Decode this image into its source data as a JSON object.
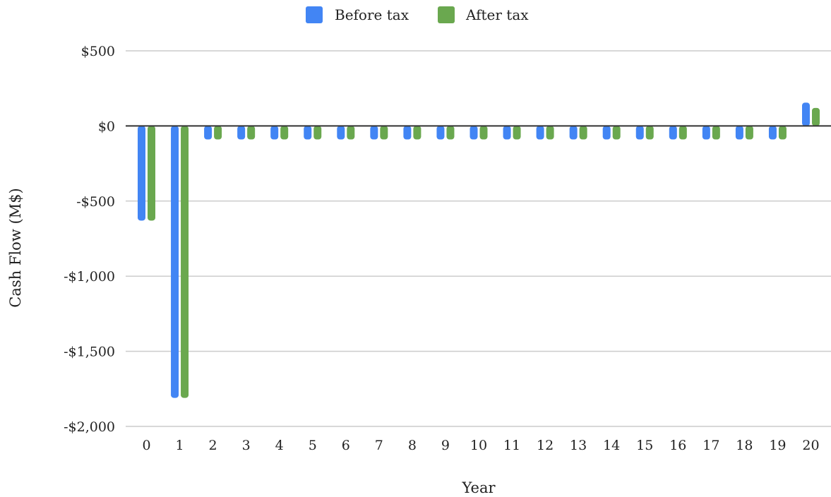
{
  "chart_data": {
    "type": "bar",
    "xlabel": "Year",
    "ylabel": "Cash Flow (M$)",
    "categories": [
      "0",
      "1",
      "2",
      "3",
      "4",
      "5",
      "6",
      "7",
      "8",
      "9",
      "10",
      "11",
      "12",
      "13",
      "14",
      "15",
      "16",
      "17",
      "18",
      "19",
      "20"
    ],
    "series": [
      {
        "name": "Before tax",
        "color": "#4285f4",
        "values": [
          -630,
          -1810,
          -90,
          -90,
          -90,
          -90,
          -90,
          -90,
          -90,
          -90,
          -90,
          -90,
          -90,
          -90,
          -90,
          -90,
          -90,
          -90,
          -90,
          -90,
          155
        ]
      },
      {
        "name": "After tax",
        "color": "#6aa84f",
        "values": [
          -630,
          -1810,
          -90,
          -90,
          -90,
          -90,
          -90,
          -90,
          -90,
          -90,
          -90,
          -90,
          -90,
          -90,
          -90,
          -90,
          -90,
          -90,
          -90,
          -90,
          120
        ]
      }
    ],
    "ylim": [
      -2000,
      500
    ],
    "yticks": [
      500,
      0,
      -500,
      -1000,
      -1500,
      -2000
    ],
    "ytick_labels": [
      "$500",
      "$0",
      "-$500",
      "-$1,000",
      "-$1,500",
      "-$2,000"
    ],
    "grid": true,
    "legend_position": "top"
  }
}
